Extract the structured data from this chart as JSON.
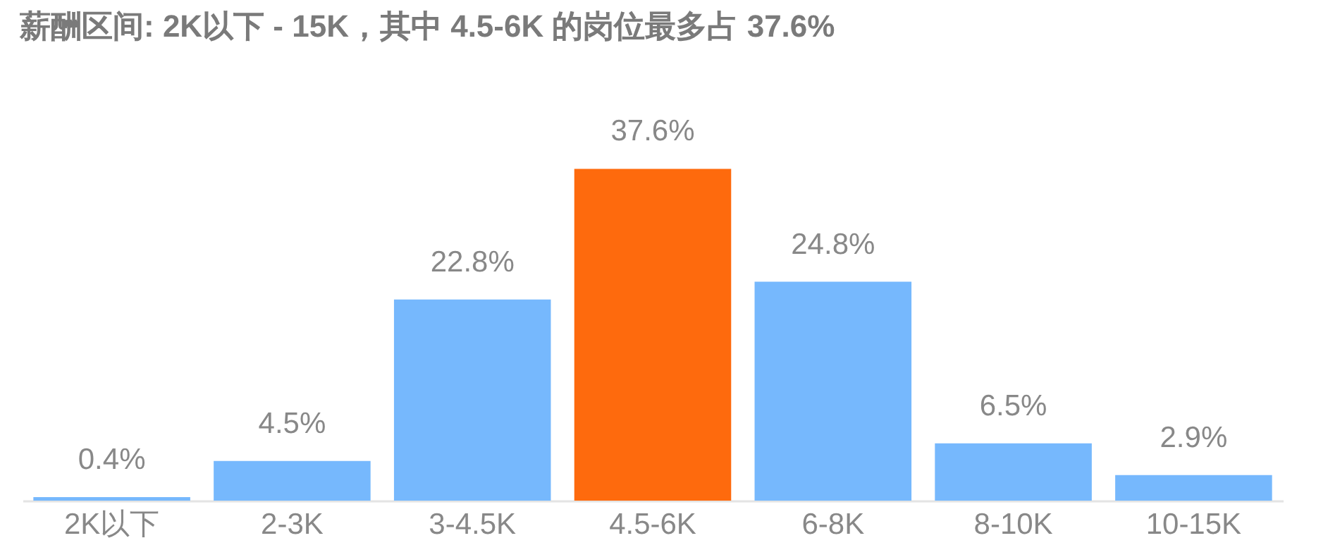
{
  "chart_data": {
    "type": "bar",
    "title": "薪酬区间: 2K以下 - 15K，其中 4.5-6K 的岗位最多占 37.6%",
    "categories": [
      "2K以下",
      "2-3K",
      "3-4.5K",
      "4.5-6K",
      "6-8K",
      "8-10K",
      "10-15K"
    ],
    "values": [
      0.4,
      4.5,
      22.8,
      37.6,
      24.8,
      6.5,
      2.9
    ],
    "value_labels": [
      "0.4%",
      "4.5%",
      "22.8%",
      "37.6%",
      "24.8%",
      "6.5%",
      "2.9%"
    ],
    "colors": [
      "#76b8fd",
      "#76b8fd",
      "#76b8fd",
      "#fe6a0d",
      "#76b8fd",
      "#76b8fd",
      "#76b8fd"
    ],
    "orientation": "vertical"
  }
}
